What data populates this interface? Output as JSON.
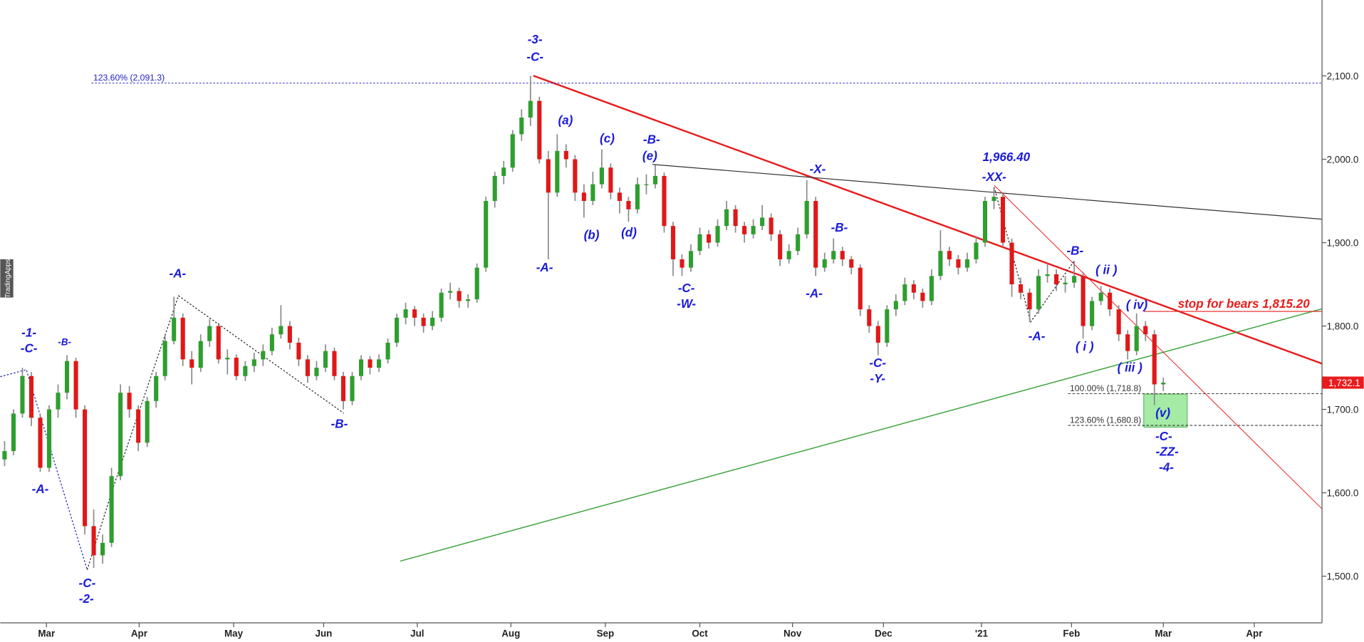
{
  "chart_data": {
    "type": "candlestick",
    "brand": "TradingApps",
    "up_color": "#2e9e2e",
    "down_color": "#e01818",
    "wick_color": "#8a8a8a",
    "xlim": [
      0,
      148
    ],
    "xticks": [
      {
        "value": 4.7,
        "label": "Mar"
      },
      {
        "value": 15.1,
        "label": "Apr"
      },
      {
        "value": 25.7,
        "label": "May"
      },
      {
        "value": 35.8,
        "label": "Jun"
      },
      {
        "value": 46.3,
        "label": "Jul"
      },
      {
        "value": 56.8,
        "label": "Aug"
      },
      {
        "value": 67.4,
        "label": "Sep"
      },
      {
        "value": 78,
        "label": "Oct"
      },
      {
        "value": 88.4,
        "label": "Nov"
      },
      {
        "value": 98.6,
        "label": "Dec"
      },
      {
        "value": 109.6,
        "label": "'21"
      },
      {
        "value": 119.7,
        "label": "Feb"
      },
      {
        "value": 130,
        "label": "Mar"
      },
      {
        "value": 140.2,
        "label": "Apr"
      }
    ],
    "ylim": [
      1444,
      2191
    ],
    "yticks": [
      {
        "value": 1500,
        "label": "1,500.0"
      },
      {
        "value": 1600,
        "label": "1,600.0"
      },
      {
        "value": 1700,
        "label": "1,700.0"
      },
      {
        "value": 1800,
        "label": "1,800.0"
      },
      {
        "value": 1900,
        "label": "1,900.0"
      },
      {
        "value": 2000,
        "label": "2,000.0"
      },
      {
        "value": 2100,
        "label": "2,100.0"
      }
    ],
    "last_price": {
      "value": 1732.1,
      "label": "1,732.1"
    },
    "levels": [
      {
        "value": 2091.3,
        "label": "123.60% (2,091.3)"
      },
      {
        "value": 1718.8,
        "label": "100.00% (1,718.8)"
      },
      {
        "value": 1680.8,
        "label": "123.60% (1,680.8)"
      }
    ],
    "annotations": [
      "-3-",
      "-C-",
      "(a)",
      "(c)",
      "-B-",
      "(e)",
      "(b)",
      "(d)",
      "-A-",
      "-C-",
      "-W-",
      "-X-",
      "-B-",
      "-A-",
      "1,966.40",
      "-XX-",
      "-C-",
      "-Y-",
      "-A-",
      "-B-",
      "( ii )",
      "( iv)",
      "stop for bears 1,815.20",
      "( i )",
      "( iii )",
      "(v)",
      "-C-",
      "-ZZ-",
      "-4-",
      "-1-",
      "-C-",
      "-B-",
      "-A-",
      "-A-",
      "-B-",
      "-C-",
      "-2-"
    ],
    "candles": [
      [
        1640,
        1662,
        1632,
        1650
      ],
      [
        1650,
        1700,
        1645,
        1695
      ],
      [
        1695,
        1750,
        1690,
        1740
      ],
      [
        1740,
        1745,
        1680,
        1690
      ],
      [
        1690,
        1695,
        1625,
        1630
      ],
      [
        1630,
        1705,
        1625,
        1700
      ],
      [
        1700,
        1730,
        1690,
        1720
      ],
      [
        1720,
        1765,
        1712,
        1758
      ],
      [
        1758,
        1762,
        1690,
        1700
      ],
      [
        1700,
        1705,
        1550,
        1560
      ],
      [
        1560,
        1580,
        1510,
        1525
      ],
      [
        1525,
        1550,
        1515,
        1540
      ],
      [
        1540,
        1630,
        1535,
        1620
      ],
      [
        1620,
        1730,
        1615,
        1720
      ],
      [
        1720,
        1728,
        1690,
        1700
      ],
      [
        1700,
        1705,
        1650,
        1660
      ],
      [
        1660,
        1715,
        1655,
        1710
      ],
      [
        1710,
        1745,
        1702,
        1740
      ],
      [
        1740,
        1790,
        1735,
        1782
      ],
      [
        1782,
        1835,
        1778,
        1810
      ],
      [
        1810,
        1815,
        1752,
        1760
      ],
      [
        1760,
        1770,
        1730,
        1750
      ],
      [
        1750,
        1790,
        1745,
        1782
      ],
      [
        1782,
        1808,
        1775,
        1800
      ],
      [
        1800,
        1804,
        1755,
        1760
      ],
      [
        1760,
        1772,
        1742,
        1762
      ],
      [
        1762,
        1766,
        1735,
        1740
      ],
      [
        1740,
        1758,
        1734,
        1752
      ],
      [
        1752,
        1768,
        1745,
        1760
      ],
      [
        1760,
        1778,
        1752,
        1770
      ],
      [
        1770,
        1798,
        1765,
        1790
      ],
      [
        1790,
        1825,
        1785,
        1800
      ],
      [
        1800,
        1806,
        1772,
        1780
      ],
      [
        1780,
        1786,
        1752,
        1760
      ],
      [
        1760,
        1765,
        1732,
        1740
      ],
      [
        1740,
        1758,
        1735,
        1750
      ],
      [
        1750,
        1778,
        1745,
        1770
      ],
      [
        1770,
        1774,
        1735,
        1740
      ],
      [
        1740,
        1745,
        1700,
        1710
      ],
      [
        1710,
        1745,
        1705,
        1740
      ],
      [
        1740,
        1765,
        1735,
        1760
      ],
      [
        1760,
        1764,
        1742,
        1750
      ],
      [
        1750,
        1766,
        1745,
        1760
      ],
      [
        1760,
        1785,
        1755,
        1780
      ],
      [
        1780,
        1815,
        1775,
        1810
      ],
      [
        1810,
        1828,
        1802,
        1820
      ],
      [
        1820,
        1824,
        1800,
        1810
      ],
      [
        1810,
        1815,
        1792,
        1800
      ],
      [
        1800,
        1818,
        1795,
        1810
      ],
      [
        1810,
        1845,
        1805,
        1840
      ],
      [
        1840,
        1852,
        1832,
        1842
      ],
      [
        1842,
        1846,
        1822,
        1830
      ],
      [
        1830,
        1838,
        1822,
        1832
      ],
      [
        1832,
        1875,
        1828,
        1870
      ],
      [
        1870,
        1955,
        1865,
        1950
      ],
      [
        1950,
        1985,
        1942,
        1980
      ],
      [
        1980,
        1998,
        1970,
        1990
      ],
      [
        1990,
        2035,
        1985,
        2030
      ],
      [
        2030,
        2060,
        2022,
        2050
      ],
      [
        2050,
        2100,
        2040,
        2070
      ],
      [
        2070,
        2075,
        1995,
        2000
      ],
      [
        2000,
        2010,
        1880,
        1960
      ],
      [
        1960,
        2030,
        1955,
        2010
      ],
      [
        2010,
        2018,
        1990,
        2000
      ],
      [
        2000,
        2005,
        1950,
        1960
      ],
      [
        1960,
        1970,
        1930,
        1950
      ],
      [
        1950,
        1985,
        1945,
        1970
      ],
      [
        1970,
        2012,
        1965,
        1990
      ],
      [
        1990,
        1995,
        1952,
        1960
      ],
      [
        1960,
        1966,
        1935,
        1950
      ],
      [
        1950,
        1955,
        1925,
        1940
      ],
      [
        1940,
        1978,
        1935,
        1970
      ],
      [
        1970,
        1982,
        1958,
        1970
      ],
      [
        1970,
        1993,
        1965,
        1980
      ],
      [
        1980,
        1984,
        1912,
        1920
      ],
      [
        1920,
        1925,
        1860,
        1880
      ],
      [
        1880,
        1886,
        1860,
        1870
      ],
      [
        1870,
        1898,
        1865,
        1890
      ],
      [
        1890,
        1918,
        1885,
        1910
      ],
      [
        1910,
        1915,
        1893,
        1900
      ],
      [
        1900,
        1928,
        1895,
        1920
      ],
      [
        1920,
        1950,
        1915,
        1940
      ],
      [
        1940,
        1945,
        1912,
        1920
      ],
      [
        1920,
        1925,
        1900,
        1910
      ],
      [
        1910,
        1928,
        1905,
        1920
      ],
      [
        1920,
        1945,
        1915,
        1930
      ],
      [
        1930,
        1935,
        1902,
        1910
      ],
      [
        1910,
        1915,
        1872,
        1880
      ],
      [
        1880,
        1898,
        1875,
        1890
      ],
      [
        1890,
        1918,
        1885,
        1910
      ],
      [
        1910,
        1975,
        1905,
        1950
      ],
      [
        1950,
        1955,
        1860,
        1870
      ],
      [
        1870,
        1888,
        1865,
        1880
      ],
      [
        1880,
        1905,
        1875,
        1890
      ],
      [
        1890,
        1895,
        1872,
        1880
      ],
      [
        1880,
        1884,
        1862,
        1870
      ],
      [
        1870,
        1874,
        1812,
        1820
      ],
      [
        1820,
        1825,
        1792,
        1800
      ],
      [
        1800,
        1806,
        1765,
        1780
      ],
      [
        1780,
        1825,
        1775,
        1820
      ],
      [
        1820,
        1838,
        1812,
        1830
      ],
      [
        1830,
        1858,
        1825,
        1850
      ],
      [
        1850,
        1855,
        1832,
        1840
      ],
      [
        1840,
        1845,
        1822,
        1830
      ],
      [
        1830,
        1868,
        1825,
        1860
      ],
      [
        1860,
        1915,
        1855,
        1890
      ],
      [
        1890,
        1895,
        1872,
        1880
      ],
      [
        1880,
        1885,
        1862,
        1870
      ],
      [
        1870,
        1888,
        1865,
        1880
      ],
      [
        1880,
        1908,
        1875,
        1900
      ],
      [
        1900,
        1955,
        1895,
        1950
      ],
      [
        1950,
        1966.4,
        1940,
        1955
      ],
      [
        1955,
        1958,
        1895,
        1900
      ],
      [
        1900,
        1905,
        1835,
        1850
      ],
      [
        1850,
        1858,
        1832,
        1840
      ],
      [
        1840,
        1845,
        1805,
        1820
      ],
      [
        1820,
        1868,
        1815,
        1860
      ],
      [
        1860,
        1875,
        1852,
        1862
      ],
      [
        1862,
        1868,
        1842,
        1850
      ],
      [
        1850,
        1860,
        1840,
        1852
      ],
      [
        1852,
        1878,
        1846,
        1860
      ],
      [
        1860,
        1865,
        1785,
        1800
      ],
      [
        1800,
        1835,
        1795,
        1830
      ],
      [
        1830,
        1848,
        1825,
        1840
      ],
      [
        1840,
        1845,
        1812,
        1820
      ],
      [
        1820,
        1825,
        1782,
        1790
      ],
      [
        1790,
        1795,
        1760,
        1770
      ],
      [
        1770,
        1815,
        1765,
        1800
      ],
      [
        1800,
        1806,
        1782,
        1790
      ],
      [
        1790,
        1795,
        1705,
        1730
      ],
      [
        1730,
        1738,
        1722,
        1732.1
      ]
    ]
  }
}
